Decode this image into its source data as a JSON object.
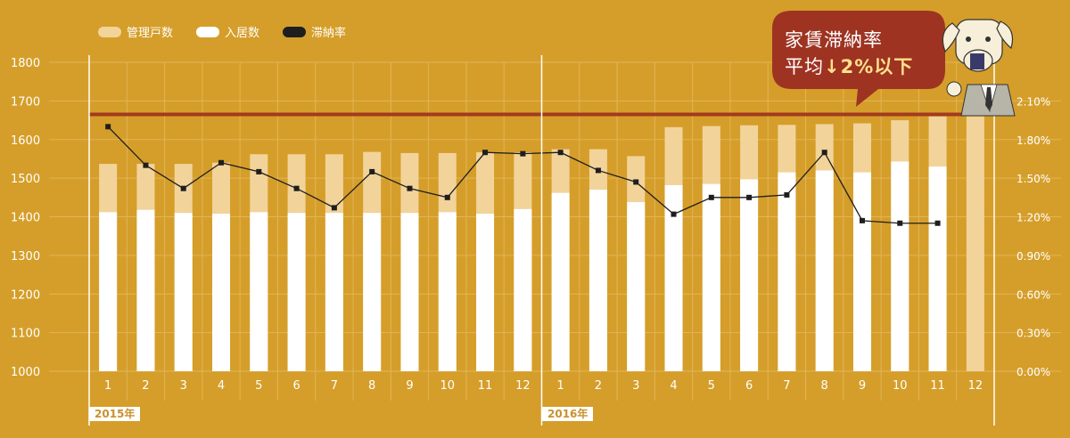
{
  "legend": [
    {
      "label": "管理戸数",
      "color": "#F2D39A"
    },
    {
      "label": "入居数",
      "color": "#FFFFFF"
    },
    {
      "label": "滞納率",
      "color": "#1E1E1E"
    }
  ],
  "callout": {
    "line1": "家賃滞納率",
    "line2_prefix": "平均",
    "line2_arrow": "↓",
    "line2_highlight": "2%以下"
  },
  "years": [
    "2015年",
    "2016年"
  ],
  "colors": {
    "background": "#D59E2A",
    "managed": "#F2D39A",
    "occupied": "#FFFFFF",
    "rate_line": "#1E1E1E",
    "target_line": "#A33A1E",
    "bubble": "#9E3322"
  },
  "chart_data": {
    "type": "bar",
    "categories": [
      "1",
      "2",
      "3",
      "4",
      "5",
      "6",
      "7",
      "8",
      "9",
      "10",
      "11",
      "12",
      "1",
      "2",
      "3",
      "4",
      "5",
      "6",
      "7",
      "8",
      "9",
      "10",
      "11",
      "12"
    ],
    "ylim": [
      1000,
      1800
    ],
    "yticks": [
      "1000",
      "1100",
      "1200",
      "1300",
      "1400",
      "1500",
      "1600",
      "1700",
      "1800"
    ],
    "y2lim": [
      0,
      2.4
    ],
    "y2ticks": [
      "0.00%",
      "0.30%",
      "0.60%",
      "0.90%",
      "1.20%",
      "1.50%",
      "1.80%",
      "2.10%"
    ],
    "series": [
      {
        "name": "管理戸数",
        "type": "bar",
        "values": [
          1537,
          1537,
          1537,
          1540,
          1562,
          1562,
          1562,
          1568,
          1565,
          1565,
          1567,
          1567,
          1575,
          1575,
          1557,
          1632,
          1635,
          1637,
          1638,
          1640,
          1642,
          1650,
          1660,
          1660
        ]
      },
      {
        "name": "入居数",
        "type": "bar",
        "values": [
          1412,
          1418,
          1410,
          1408,
          1412,
          1410,
          1410,
          1410,
          1410,
          1412,
          1408,
          1420,
          1462,
          1470,
          1438,
          1482,
          1485,
          1497,
          1515,
          1520,
          1515,
          1543,
          1530,
          null
        ]
      },
      {
        "name": "滞納率",
        "type": "line",
        "values": [
          1.9,
          1.6,
          1.42,
          1.62,
          1.55,
          1.42,
          1.27,
          1.55,
          1.42,
          1.35,
          1.7,
          1.69,
          1.7,
          1.56,
          1.47,
          1.22,
          1.35,
          1.35,
          1.37,
          1.7,
          1.17,
          1.15,
          1.15,
          null
        ]
      }
    ],
    "target_line_value": 1665
  }
}
